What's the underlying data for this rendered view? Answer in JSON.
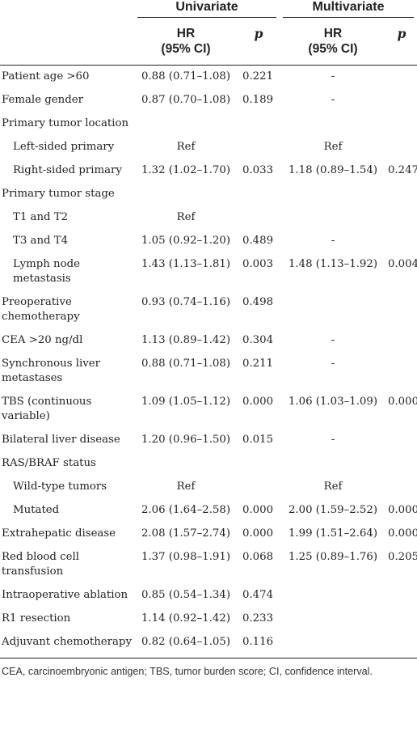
{
  "header": {
    "univariate": "Univariate",
    "multivariate": "Multivariate",
    "hr_line1": "HR",
    "hr_line2": "(95% CI)",
    "p": "p"
  },
  "rows": [
    {
      "label": "Patient age >60",
      "indent": false,
      "uhr": "0.88 (0.71–1.08)",
      "up": "0.221",
      "mhr": "-",
      "mp": ""
    },
    {
      "label": "Female gender",
      "indent": false,
      "uhr": "0.87 (0.70–1.08)",
      "up": "0.189",
      "mhr": "-",
      "mp": ""
    },
    {
      "label": "Primary tumor location",
      "indent": false,
      "uhr": "",
      "up": "",
      "mhr": "",
      "mp": ""
    },
    {
      "label": "Left-sided primary",
      "indent": true,
      "uhr": "Ref",
      "up": "",
      "mhr": "Ref",
      "mp": ""
    },
    {
      "label": "Right-sided primary",
      "indent": true,
      "uhr": "1.32 (1.02–1.70)",
      "up": "0.033",
      "mhr": "1.18 (0.89–1.54)",
      "mp": "0.247"
    },
    {
      "label": "Primary tumor stage",
      "indent": false,
      "uhr": "",
      "up": "",
      "mhr": "",
      "mp": ""
    },
    {
      "label": "T1 and T2",
      "indent": true,
      "uhr": "Ref",
      "up": "",
      "mhr": "",
      "mp": ""
    },
    {
      "label": "T3 and T4",
      "indent": true,
      "uhr": "1.05 (0.92–1.20)",
      "up": "0.489",
      "mhr": "-",
      "mp": ""
    },
    {
      "label": "Lymph node metastasis",
      "indent": true,
      "uhr": "1.43 (1.13–1.81)",
      "up": "0.003",
      "mhr": "1.48 (1.13–1.92)",
      "mp": "0.004"
    },
    {
      "label": "Preoperative chemotherapy",
      "indent": false,
      "uhr": "0.93 (0.74–1.16)",
      "up": "0.498",
      "mhr": "",
      "mp": ""
    },
    {
      "label": "CEA >20 ng/dl",
      "indent": false,
      "uhr": "1.13 (0.89–1.42)",
      "up": "0.304",
      "mhr": "-",
      "mp": ""
    },
    {
      "label": "Synchronous liver metastases",
      "indent": false,
      "uhr": "0.88 (0.71–1.08)",
      "up": "0.211",
      "mhr": "-",
      "mp": ""
    },
    {
      "label": "TBS (continuous variable)",
      "indent": false,
      "uhr": "1.09 (1.05–1.12)",
      "up": "0.000",
      "mhr": "1.06 (1.03–1.09)",
      "mp": "0.000"
    },
    {
      "label": "Bilateral liver disease",
      "indent": false,
      "uhr": "1.20 (0.96–1.50)",
      "up": "0.015",
      "mhr": "-",
      "mp": ""
    },
    {
      "label": "RAS/BRAF status",
      "indent": false,
      "uhr": "",
      "up": "",
      "mhr": "",
      "mp": ""
    },
    {
      "label": "Wild-type tumors",
      "indent": true,
      "uhr": "Ref",
      "up": "",
      "mhr": "Ref",
      "mp": ""
    },
    {
      "label": "Mutated",
      "indent": true,
      "uhr": "2.06 (1.64–2.58)",
      "up": "0.000",
      "mhr": "2.00 (1.59–2.52)",
      "mp": "0.000"
    },
    {
      "label": "Extrahepatic disease",
      "indent": false,
      "uhr": "2.08 (1.57–2.74)",
      "up": "0.000",
      "mhr": "1.99 (1.51–2.64)",
      "mp": "0.000"
    },
    {
      "label": "Red blood cell transfusion",
      "indent": false,
      "uhr": "1.37 (0.98–1.91)",
      "up": "0.068",
      "mhr": "1.25 (0.89–1.76)",
      "mp": "0.205"
    },
    {
      "label": "Intraoperative ablation",
      "indent": false,
      "uhr": "0.85 (0.54–1.34)",
      "up": "0.474",
      "mhr": "",
      "mp": ""
    },
    {
      "label": "R1 resection",
      "indent": false,
      "uhr": "1.14 (0.92–1.42)",
      "up": "0.233",
      "mhr": "",
      "mp": ""
    },
    {
      "label": "Adjuvant chemotherapy",
      "indent": false,
      "uhr": "0.82 (0.64–1.05)",
      "up": "0.116",
      "mhr": "",
      "mp": ""
    }
  ],
  "footnote": "CEA, carcinoembryonic antigen; TBS, tumor burden score; CI, confidence interval."
}
